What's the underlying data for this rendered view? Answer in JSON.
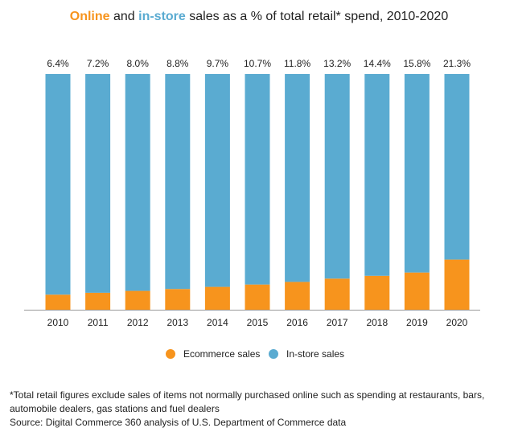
{
  "chart_data": {
    "type": "stacked-bar",
    "title": [
      "Online",
      " and ",
      "in-store",
      " sales as a % of total retail* spend, 2010-2020"
    ],
    "categories": [
      "2010",
      "2011",
      "2012",
      "2013",
      "2014",
      "2015",
      "2016",
      "2017",
      "2018",
      "2019",
      "2020"
    ],
    "series": [
      {
        "name": "Ecommerce sales",
        "color": "#f7941d",
        "values": [
          6.4,
          7.2,
          8.0,
          8.8,
          9.7,
          10.7,
          11.8,
          13.2,
          14.4,
          15.8,
          21.3
        ],
        "value_labels": [
          "6.4%",
          "7.2%",
          "8.0%",
          "8.8%",
          "9.7%",
          "10.7%",
          "11.8%",
          "13.2%",
          "14.4%",
          "15.8%",
          "21.3%"
        ]
      },
      {
        "name": "In-store sales",
        "color": "#5aabd1",
        "values": [
          93.6,
          92.8,
          92.0,
          91.2,
          90.3,
          89.3,
          88.2,
          86.8,
          85.6,
          84.2,
          78.7
        ]
      }
    ],
    "ylim": [
      0,
      100
    ],
    "notes": [
      "*Total retail figures exclude sales of items not normally purchased online such as spending at restaurants, bars,",
      "automobile dealers, gas stations and fuel dealers"
    ],
    "source": "Source: Digital Commerce 360 analysis of U.S. Department of Commerce data"
  }
}
